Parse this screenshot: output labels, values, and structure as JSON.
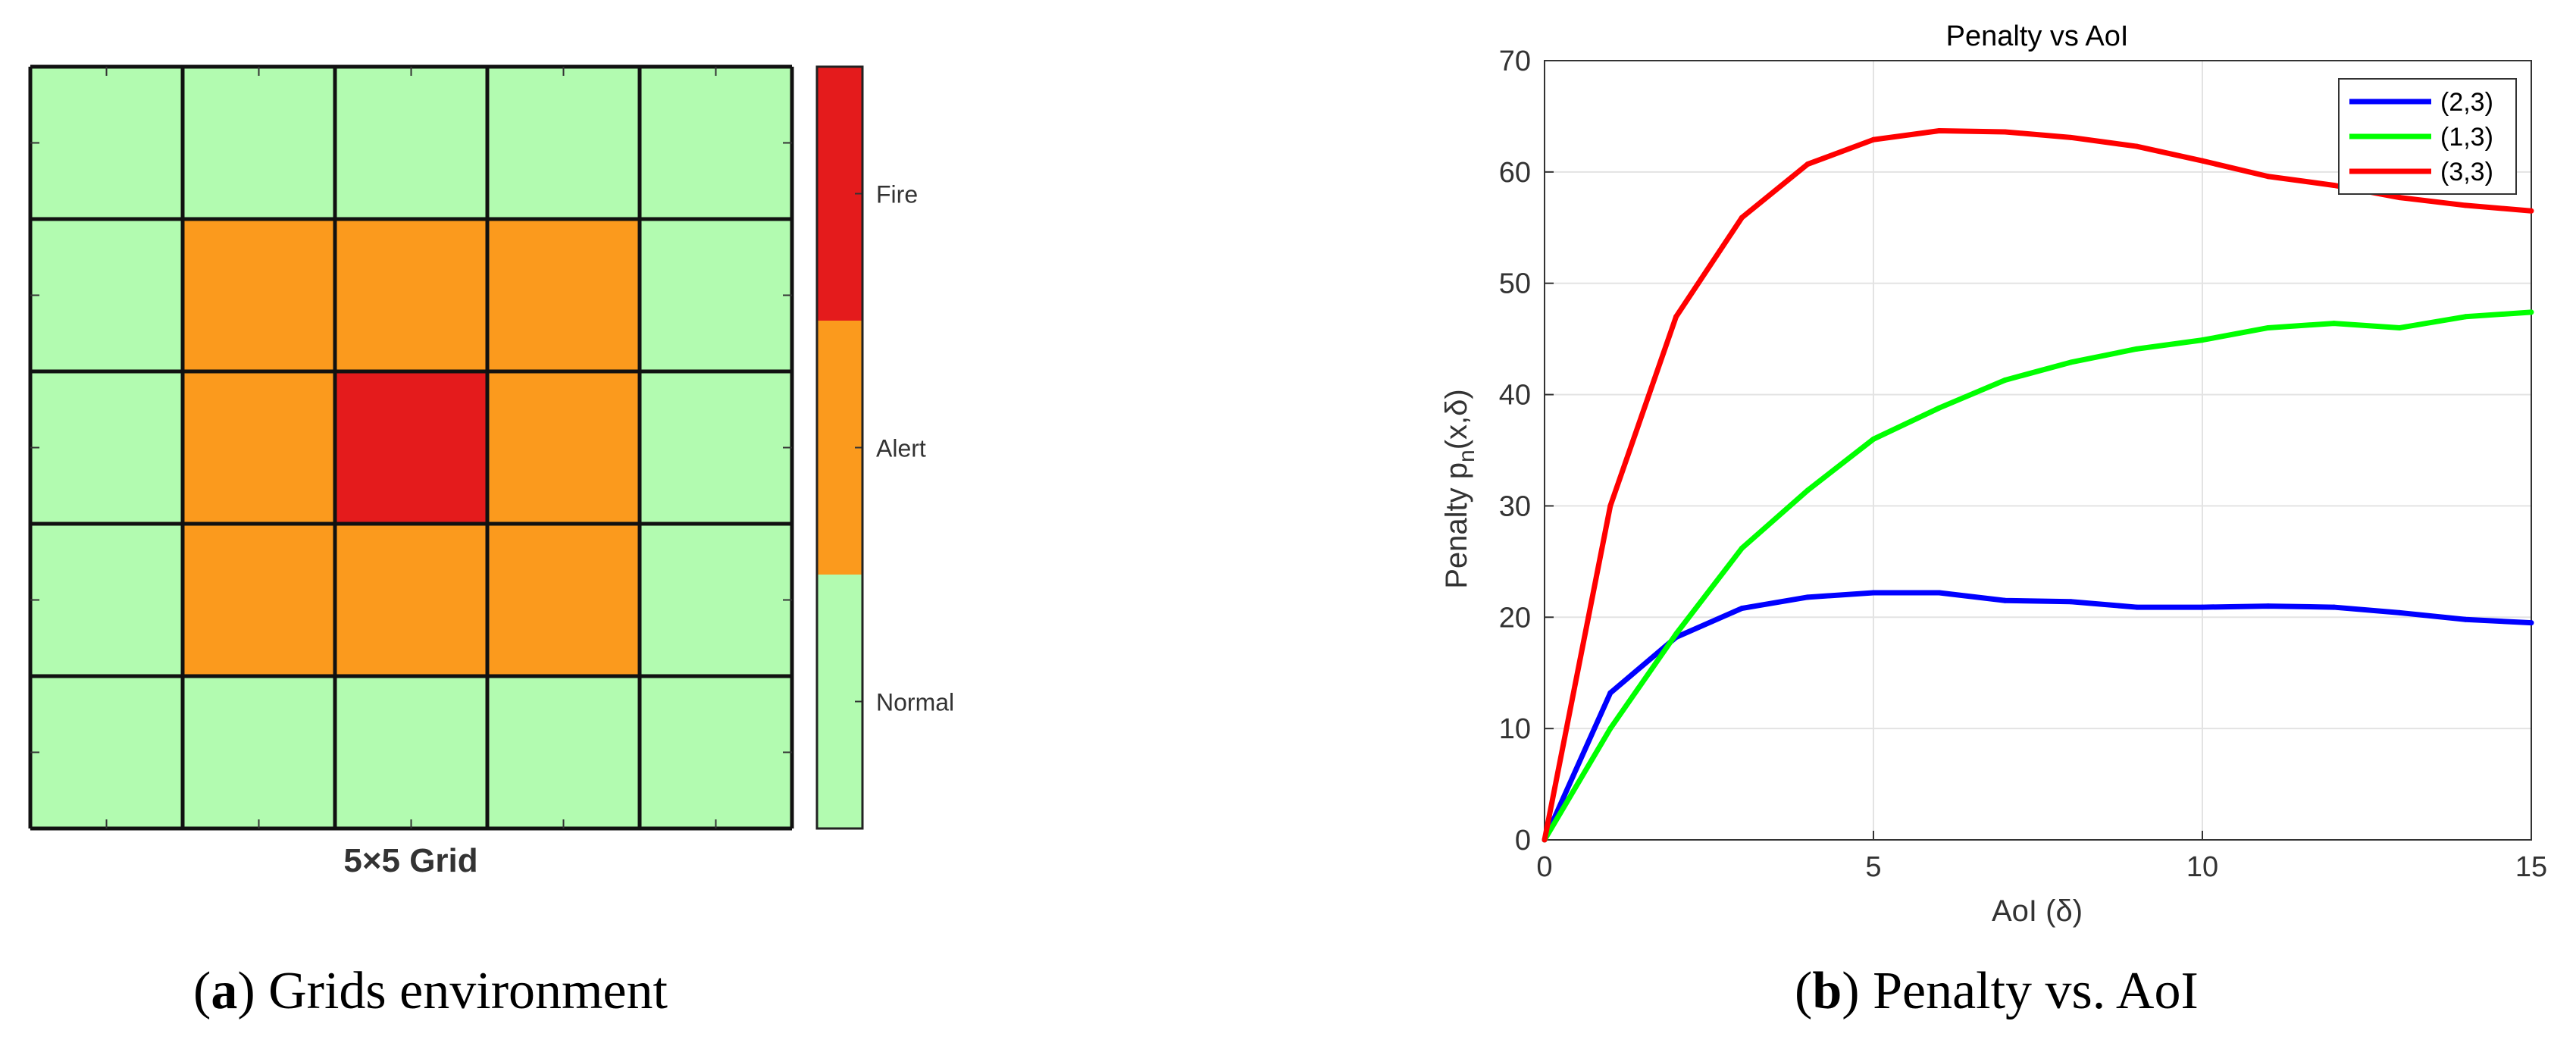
{
  "panel_a": {
    "caption_letter": "a",
    "caption_text": "Grids environment",
    "grid_title": "5×5 Grid",
    "colorbar_labels": [
      "Fire",
      "Alert",
      "Normal"
    ]
  },
  "panel_b": {
    "caption_letter": "b",
    "caption_text": "Penalty vs. AoI"
  },
  "chart_data": [
    {
      "type": "heatmap",
      "title": "5×5 Grid",
      "rows": 5,
      "cols": 5,
      "values": [
        [
          "Normal",
          "Normal",
          "Normal",
          "Normal",
          "Normal"
        ],
        [
          "Normal",
          "Alert",
          "Alert",
          "Alert",
          "Normal"
        ],
        [
          "Normal",
          "Alert",
          "Fire",
          "Alert",
          "Normal"
        ],
        [
          "Normal",
          "Alert",
          "Alert",
          "Alert",
          "Normal"
        ],
        [
          "Normal",
          "Normal",
          "Normal",
          "Normal",
          "Normal"
        ]
      ],
      "levels": [
        {
          "name": "Fire",
          "color": "#e41b1c"
        },
        {
          "name": "Alert",
          "color": "#fb9a1d"
        },
        {
          "name": "Normal",
          "color": "#b2fbb0"
        }
      ],
      "colorbar": [
        "Fire",
        "Alert",
        "Normal"
      ]
    },
    {
      "type": "line",
      "title": "Penalty vs AoI",
      "xlabel": "AoI (δ)",
      "ylabel_main": "Penalty p",
      "ylabel_sub": "n",
      "ylabel_rest": "(x,δ)",
      "xlim": [
        0,
        15
      ],
      "ylim": [
        0,
        70
      ],
      "xticks": [
        0,
        5,
        10,
        15
      ],
      "yticks": [
        0,
        10,
        20,
        30,
        40,
        50,
        60,
        70
      ],
      "grid": true,
      "legend_position": "top-right",
      "x": [
        0,
        1,
        2,
        3,
        4,
        5,
        6,
        7,
        8,
        9,
        10,
        11,
        12,
        13,
        14,
        15
      ],
      "series": [
        {
          "name": "(2,3)",
          "color": "#0000ff",
          "values": [
            0,
            13.2,
            18.2,
            20.8,
            21.8,
            22.2,
            22.2,
            21.5,
            21.4,
            20.9,
            20.9,
            21.0,
            20.9,
            20.4,
            19.8,
            19.5
          ]
        },
        {
          "name": "(1,3)",
          "color": "#00ff00",
          "values": [
            0,
            10.0,
            18.5,
            26.2,
            31.4,
            36.0,
            38.8,
            41.3,
            42.9,
            44.1,
            44.9,
            46.0,
            46.4,
            46.0,
            47.0,
            47.4
          ]
        },
        {
          "name": "(3,3)",
          "color": "#ff0000",
          "values": [
            0,
            30.0,
            47.0,
            55.9,
            60.7,
            62.9,
            63.7,
            63.6,
            63.1,
            62.3,
            61.0,
            59.6,
            58.8,
            57.7,
            57.0,
            56.5
          ]
        }
      ]
    }
  ]
}
